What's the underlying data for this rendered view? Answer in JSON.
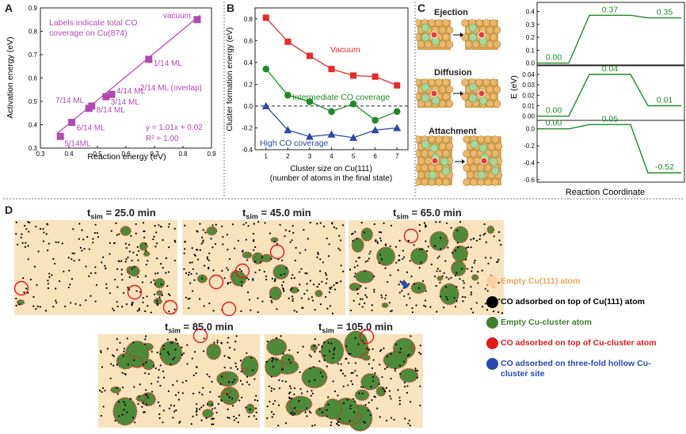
{
  "panel_labels": {
    "a": "A",
    "b": "B",
    "c": "C",
    "d": "D"
  },
  "colors": {
    "magenta": "#b04ab0",
    "red": "#e8292b",
    "green": "#1f8a2a",
    "blue": "#2b47a8",
    "cu_bg": "#f8e3bd",
    "cu_dot": "#fbd7a8",
    "co": "#000000",
    "cluster": "#4d8b3a",
    "co_cluster": "#e11a1a",
    "co_hollow": "#2848b0"
  },
  "chart_data": [
    {
      "type": "scatter",
      "panel": "A",
      "xlabel": "Reaction energy (eV)",
      "ylabel": "Activation energy (eV)",
      "xlim": [
        0.3,
        0.9
      ],
      "ylim": [
        0.3,
        0.9
      ],
      "xticks": [
        "0.3",
        "0.4",
        "0.5",
        "0.6",
        "0.7",
        "0.8",
        "0.9"
      ],
      "yticks": [
        "0.3",
        "0.4",
        "0.5",
        "0.6",
        "0.7",
        "0.8",
        "0.9"
      ],
      "points": [
        {
          "x": 0.37,
          "y": 0.35,
          "label": "5/14ML"
        },
        {
          "x": 0.41,
          "y": 0.41,
          "label": "6/14 ML"
        },
        {
          "x": 0.47,
          "y": 0.47,
          "label": "7/14 ML"
        },
        {
          "x": 0.48,
          "y": 0.48,
          "label": "8/14 ML"
        },
        {
          "x": 0.53,
          "y": 0.52,
          "label": "3/14 ML"
        },
        {
          "x": 0.55,
          "y": 0.53,
          "label": "4/14 ML"
        },
        {
          "x": 0.68,
          "y": 0.68,
          "label": "1/14 ML"
        },
        {
          "x": 0.85,
          "y": 0.85,
          "label": "vacuum"
        }
      ],
      "fit": {
        "x": [
          0.36,
          0.86
        ],
        "slope": 1.01,
        "intercept": 0.02
      },
      "annotations": {
        "top": [
          "Labels indicate total CO",
          "coverage on Cu(874)"
        ],
        "overlap": "2/14 ML (overlap)",
        "equation": "y = 1.01x + 0.02",
        "r2": "R² = 1.00"
      }
    },
    {
      "type": "line",
      "panel": "B",
      "xlabel": [
        "Cluster size on Cu(111)",
        "(number of atoms in the final state)"
      ],
      "ylabel": "Cluster formation energy (eV)",
      "xlim": [
        0.5,
        7.5
      ],
      "ylim": [
        -0.4,
        0.9
      ],
      "x": [
        1,
        2,
        3,
        4,
        5,
        6,
        7
      ],
      "yticks": [
        "-0.4",
        "-0.2",
        "0.0",
        "0.2",
        "0.4",
        "0.6",
        "0.8"
      ],
      "series": [
        {
          "name": "Vacuum",
          "marker": "square",
          "values": [
            0.81,
            0.59,
            0.46,
            0.34,
            0.28,
            0.27,
            0.19
          ]
        },
        {
          "name": "Intermediate CO coverage",
          "marker": "circle",
          "values": [
            0.34,
            0.1,
            0.04,
            -0.05,
            0.02,
            -0.13,
            -0.05
          ]
        },
        {
          "name": "High CO coverage",
          "marker": "triangle",
          "values": [
            0.0,
            -0.22,
            -0.28,
            -0.26,
            -0.29,
            -0.22,
            -0.2
          ]
        }
      ]
    },
    {
      "type": "line",
      "panel": "C",
      "xlabel": "Reaction Coordinate",
      "ylabel": "E (eV)",
      "subplots": [
        {
          "name": "Ejection",
          "ylim": [
            -0.02,
            0.47
          ],
          "yticks": [
            "0.0",
            "0.1",
            "0.2",
            "0.3",
            "0.4"
          ],
          "levels": [
            0.0,
            0.37,
            0.35
          ],
          "labels": [
            "0.00",
            "0.37",
            "0.35"
          ]
        },
        {
          "name": "Diffusion",
          "ylim": [
            -0.004,
            0.049
          ],
          "yticks": [
            "0.00",
            "0.01",
            "0.02",
            "0.03",
            "0.04"
          ],
          "levels": [
            0.0,
            0.04,
            0.01
          ],
          "labels": [
            "0.00",
            "0.04",
            "0.01"
          ]
        },
        {
          "name": "Attachment",
          "ylim": [
            -0.63,
            0.1
          ],
          "yticks": [
            "0.0",
            "-0.2",
            "-0.4",
            "-0.6"
          ],
          "levels": [
            0.0,
            0.05,
            -0.52
          ],
          "labels": [
            "0.00",
            "0.05",
            "-0.52"
          ]
        }
      ]
    }
  ],
  "panel_c_titles": [
    "Ejection",
    "Diffusion",
    "Attachment"
  ],
  "panel_d": {
    "snapshots": [
      {
        "t": "25.0 min",
        "clusters": 0.05
      },
      {
        "t": "45.0 min",
        "clusters": 0.12
      },
      {
        "t": "65.0 min",
        "clusters": 0.22
      },
      {
        "t": "85.0 min",
        "clusters": 0.32
      },
      {
        "t": "105.0 min",
        "clusters": 0.38
      }
    ],
    "t_prefix": "t",
    "t_sub": "sim",
    "t_eq": " = ",
    "legend": [
      {
        "label": "Empty Cu(111) atom",
        "color": "#f8d1a2",
        "text_color": "#e8a35c"
      },
      {
        "label": "CO adsorbed on top of Cu(111) atom",
        "color": "#000000",
        "text_color": "#000000"
      },
      {
        "label": "Empty Cu-cluster atom",
        "color": "#3f7f2e",
        "text_color": "#3f7f2e"
      },
      {
        "label": "CO adsorbed on top of Cu-cluster atom",
        "color": "#e11a1a",
        "text_color": "#e11a1a"
      },
      {
        "label": "CO adsorbed on three-fold hollow Cu-cluster site",
        "color": "#2848b0",
        "text_color": "#2848b0"
      }
    ]
  }
}
